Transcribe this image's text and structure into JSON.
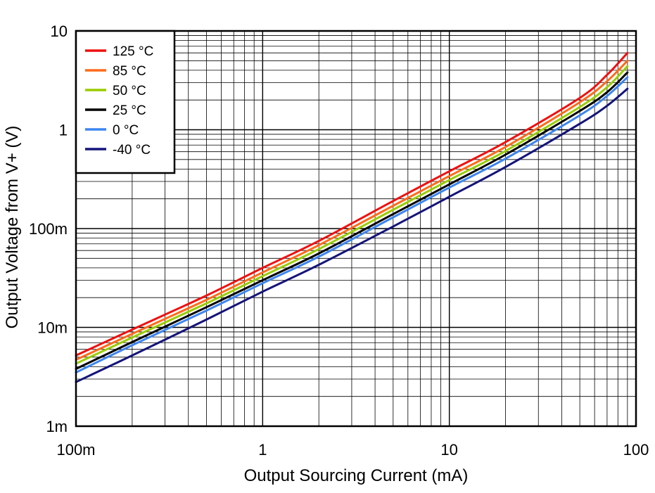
{
  "chart_data": {
    "type": "line",
    "title": "",
    "xlabel": "Output Sourcing Current (mA)",
    "ylabel": "Output Voltage from V+ (V)",
    "x_scale": "log",
    "y_scale": "log",
    "xlim": [
      0.1,
      100
    ],
    "ylim": [
      0.001,
      10
    ],
    "x_ticks": [
      {
        "value": 0.1,
        "label": "100m"
      },
      {
        "value": 1,
        "label": "1"
      },
      {
        "value": 10,
        "label": "10"
      },
      {
        "value": 100,
        "label": "100"
      }
    ],
    "y_ticks": [
      {
        "value": 0.001,
        "label": "1m"
      },
      {
        "value": 0.01,
        "label": "10m"
      },
      {
        "value": 0.1,
        "label": "100m"
      },
      {
        "value": 1,
        "label": "1"
      },
      {
        "value": 10,
        "label": "10"
      }
    ],
    "grid": true,
    "legend_position": "top-left",
    "series": [
      {
        "name": "125 °C",
        "color": "#ee1111",
        "x": [
          0.1,
          0.2,
          0.5,
          1,
          2,
          5,
          10,
          20,
          50,
          70,
          90
        ],
        "y": [
          0.0052,
          0.0095,
          0.021,
          0.04,
          0.075,
          0.19,
          0.38,
          0.75,
          2.1,
          3.6,
          6.0
        ]
      },
      {
        "name": "85 °C",
        "color": "#ff6a1a",
        "x": [
          0.1,
          0.2,
          0.5,
          1,
          2,
          5,
          10,
          20,
          50,
          70,
          90
        ],
        "y": [
          0.0047,
          0.0086,
          0.019,
          0.036,
          0.068,
          0.17,
          0.34,
          0.67,
          1.9,
          3.1,
          5.0
        ]
      },
      {
        "name": "50 °C",
        "color": "#99cc00",
        "x": [
          0.1,
          0.2,
          0.5,
          1,
          2,
          5,
          10,
          20,
          50,
          70,
          90
        ],
        "y": [
          0.0043,
          0.0079,
          0.0175,
          0.033,
          0.062,
          0.155,
          0.31,
          0.61,
          1.7,
          2.7,
          4.4
        ]
      },
      {
        "name": "25 °C",
        "color": "#000000",
        "x": [
          0.1,
          0.2,
          0.5,
          1,
          2,
          5,
          10,
          20,
          50,
          70,
          90
        ],
        "y": [
          0.0038,
          0.0071,
          0.016,
          0.03,
          0.056,
          0.14,
          0.28,
          0.56,
          1.55,
          2.4,
          3.8
        ]
      },
      {
        "name": "0 °C",
        "color": "#3d85f0",
        "x": [
          0.1,
          0.2,
          0.5,
          1,
          2,
          5,
          10,
          20,
          50,
          70,
          90
        ],
        "y": [
          0.0035,
          0.0066,
          0.0148,
          0.028,
          0.052,
          0.13,
          0.26,
          0.51,
          1.4,
          2.2,
          3.4
        ]
      },
      {
        "name": "-40 °C",
        "color": "#14147a",
        "x": [
          0.1,
          0.2,
          0.5,
          1,
          2,
          5,
          10,
          20,
          50,
          70,
          90
        ],
        "y": [
          0.0028,
          0.0052,
          0.012,
          0.023,
          0.043,
          0.105,
          0.21,
          0.42,
          1.15,
          1.75,
          2.6
        ]
      }
    ]
  }
}
